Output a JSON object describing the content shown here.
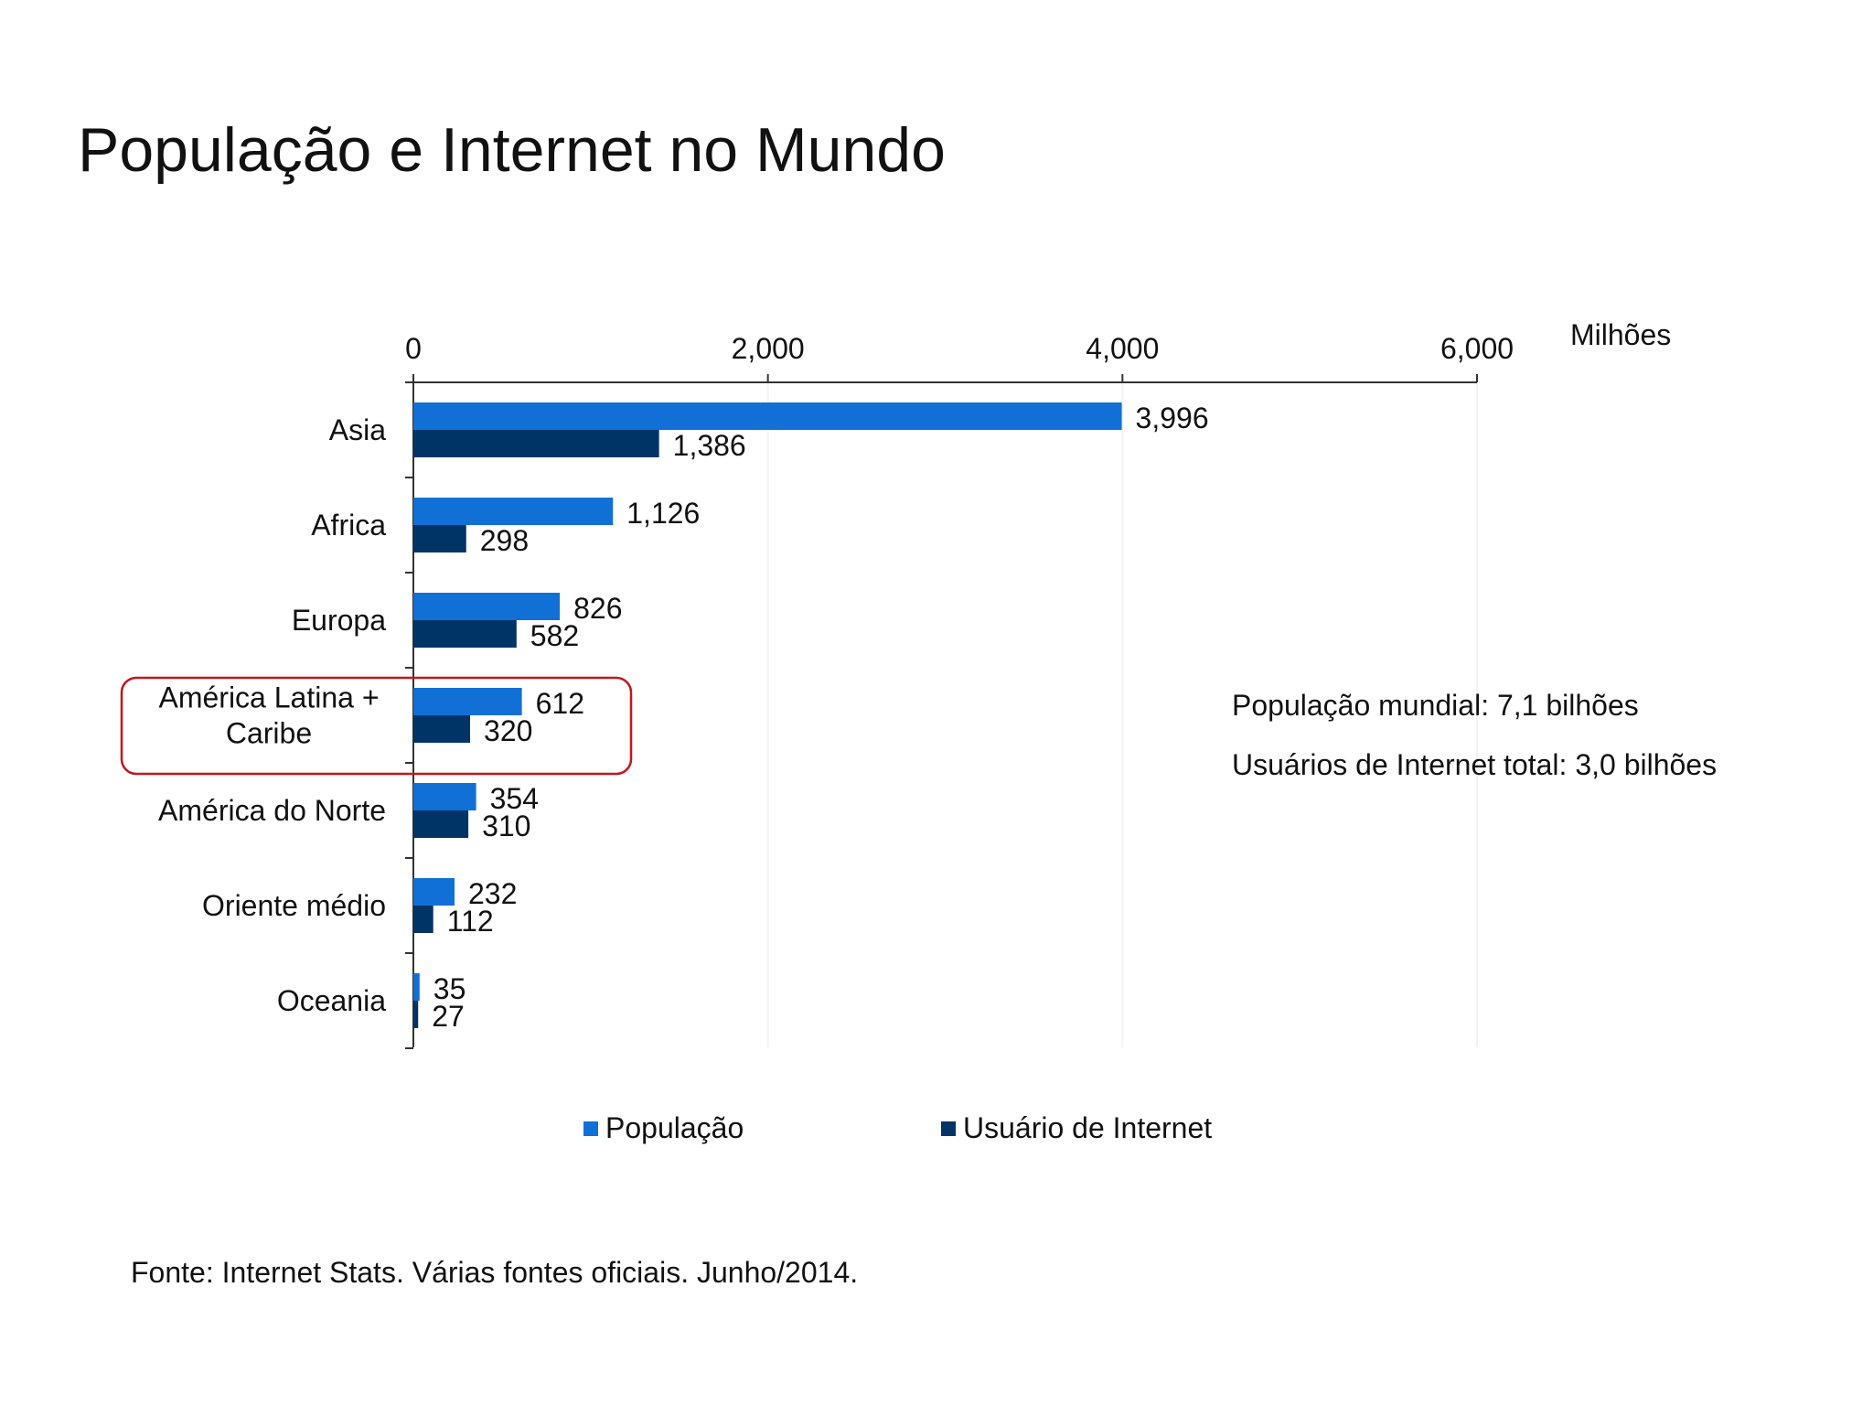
{
  "title": "População e Internet no Mundo",
  "notes": {
    "world_population": "População mundial: 7,1 bilhões",
    "internet_users": "Usuários de Internet total: 3,0 bilhões"
  },
  "source": "Fonte: Internet Stats. Várias fontes oficiais. Junho/2014.",
  "highlight_category": "América Latina + Caribe",
  "colors": {
    "populacao": "#1170d6",
    "usuarios": "#003466",
    "highlight": "#c0171f",
    "axis": "#333333"
  },
  "chart_data": {
    "type": "bar",
    "orientation": "horizontal",
    "unit_label": "Milhões",
    "categories": [
      "Asia",
      "Africa",
      "Europa",
      "América Latina + Caribe",
      "América do Norte",
      "Oriente médio",
      "Oceania"
    ],
    "category_lines": [
      [
        "Asia"
      ],
      [
        "Africa"
      ],
      [
        "Europa"
      ],
      [
        "América Latina +",
        "Caribe"
      ],
      [
        "América do Norte"
      ],
      [
        "Oriente médio"
      ],
      [
        "Oceania"
      ]
    ],
    "series": [
      {
        "name": "População",
        "values": [
          3996,
          1126,
          826,
          612,
          354,
          232,
          35
        ],
        "labels": [
          "3,996",
          "1,126",
          "826",
          "612",
          "354",
          "232",
          "35"
        ]
      },
      {
        "name": "Usuário de Internet",
        "values": [
          1386,
          298,
          582,
          320,
          310,
          112,
          27
        ],
        "labels": [
          "1,386",
          "298",
          "582",
          "320",
          "310",
          "112",
          "27"
        ]
      }
    ],
    "xlim": [
      0,
      6000
    ],
    "ticks": [
      0,
      2000,
      4000,
      6000
    ],
    "tick_labels": [
      "0",
      "2,000",
      "4,000",
      "6,000"
    ],
    "xaxis_position": "top",
    "grid": true,
    "legend_position": "bottom"
  }
}
